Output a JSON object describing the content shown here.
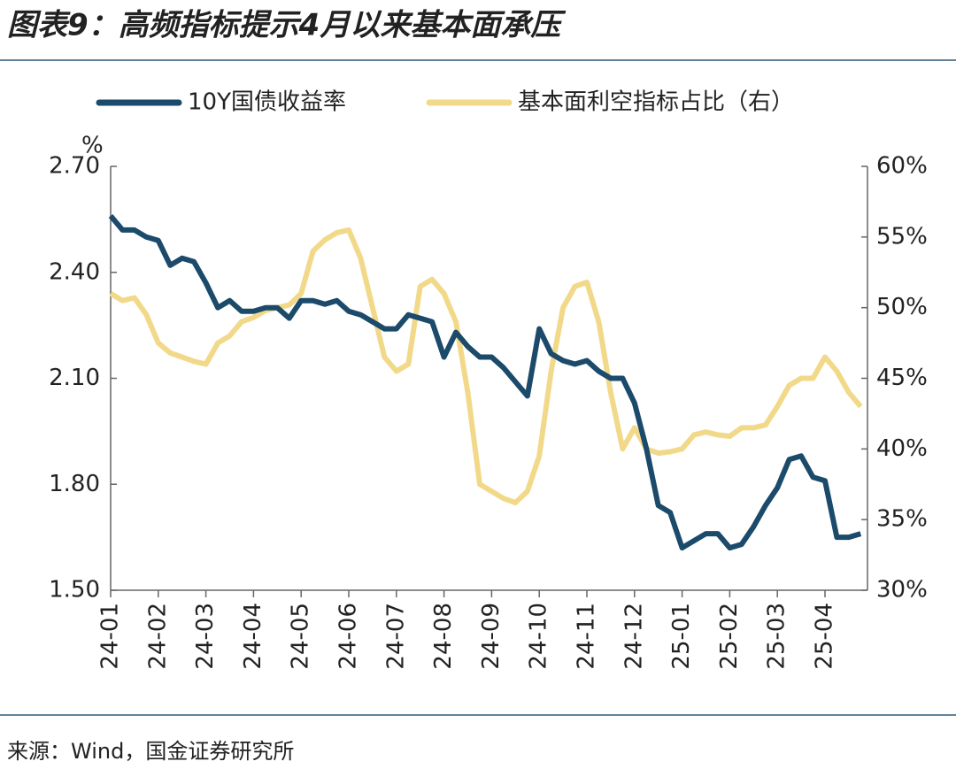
{
  "chart_data": {
    "type": "line",
    "title": "图表9：高频指标提示4月以来基本面承压",
    "source": "来源：Wind，国金证券研究所",
    "y_label": "%",
    "categories": [
      "24-01",
      null,
      null,
      null,
      "24-02",
      null,
      null,
      null,
      "24-03",
      null,
      null,
      null,
      "24-04",
      null,
      null,
      null,
      "24-05",
      null,
      null,
      null,
      "24-06",
      null,
      null,
      null,
      "24-07",
      null,
      null,
      null,
      "24-08",
      null,
      null,
      null,
      "24-09",
      null,
      null,
      null,
      "24-10",
      null,
      null,
      null,
      "24-11",
      null,
      null,
      null,
      "24-12",
      null,
      null,
      null,
      "25-01",
      null,
      null,
      null,
      "25-02",
      null,
      null,
      null,
      "25-03",
      null,
      null,
      null,
      "25-04",
      null,
      null,
      null
    ],
    "series": [
      {
        "name": "10Y国债收益率",
        "color": "#1b4a6b",
        "axis": "y",
        "values": [
          2.56,
          2.52,
          2.52,
          2.5,
          2.49,
          2.42,
          2.44,
          2.43,
          2.37,
          2.3,
          2.32,
          2.29,
          2.29,
          2.3,
          2.3,
          2.27,
          2.32,
          2.32,
          2.31,
          2.32,
          2.29,
          2.28,
          2.26,
          2.24,
          2.24,
          2.28,
          2.27,
          2.26,
          2.16,
          2.23,
          2.19,
          2.16,
          2.16,
          2.13,
          2.09,
          2.05,
          2.24,
          2.17,
          2.15,
          2.14,
          2.15,
          2.12,
          2.1,
          2.1,
          2.03,
          1.9,
          1.74,
          1.72,
          1.62,
          1.64,
          1.66,
          1.66,
          1.62,
          1.63,
          1.68,
          1.74,
          1.79,
          1.87,
          1.88,
          1.82,
          1.81,
          1.65,
          1.65,
          1.66
        ]
      },
      {
        "name": "基本面利空指标占比（右）",
        "color": "#f2d98a",
        "axis": "y2",
        "values": [
          51,
          50.5,
          50.7,
          49.5,
          47.5,
          46.8,
          46.5,
          46.2,
          46,
          47.5,
          48,
          49,
          49.3,
          49.8,
          50,
          50.2,
          51,
          54,
          54.8,
          55.3,
          55.5,
          53.5,
          50,
          46.5,
          45.5,
          46,
          51.5,
          52,
          51,
          49,
          44,
          37.5,
          37,
          36.5,
          36.2,
          37,
          39.5,
          45.5,
          50,
          51.5,
          51.8,
          49,
          44,
          40,
          41.5,
          40,
          39.7,
          39.8,
          40,
          41,
          41.2,
          41,
          40.9,
          41.5,
          41.5,
          41.7,
          43,
          44.5,
          45,
          45,
          46.5,
          45.5,
          44,
          43
        ]
      }
    ],
    "ylim": [
      1.5,
      2.7
    ],
    "yticks": [
      {
        "value": 1.5,
        "label": "1.50"
      },
      {
        "value": 1.8,
        "label": "1.80"
      },
      {
        "value": 2.1,
        "label": "2.10"
      },
      {
        "value": 2.4,
        "label": "2.40"
      },
      {
        "value": 2.7,
        "label": "2.70"
      }
    ],
    "y2lim": [
      30,
      60
    ],
    "y2ticks": [
      {
        "value": 30,
        "label": "30%"
      },
      {
        "value": 35,
        "label": "35%"
      },
      {
        "value": 40,
        "label": "40%"
      },
      {
        "value": 45,
        "label": "45%"
      },
      {
        "value": 50,
        "label": "50%"
      },
      {
        "value": 55,
        "label": "55%"
      },
      {
        "value": 60,
        "label": "60%"
      }
    ],
    "grid": false
  }
}
